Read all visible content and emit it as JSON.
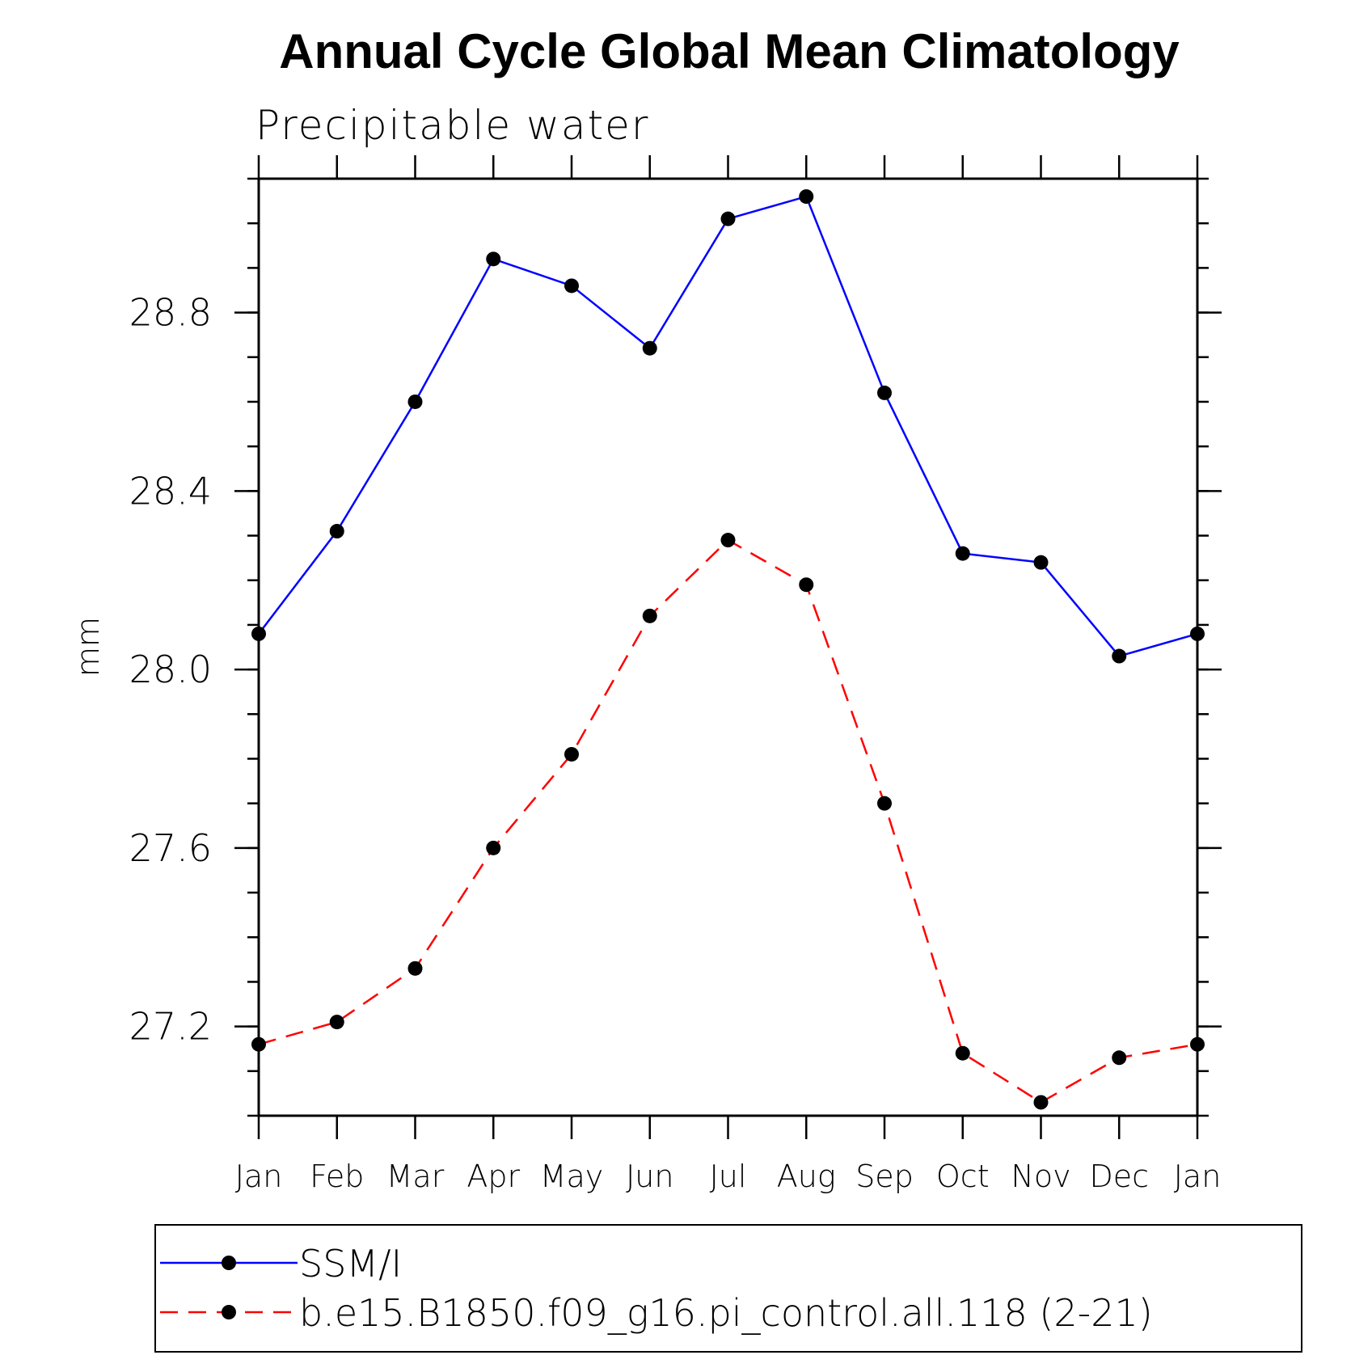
{
  "chart_data": {
    "type": "line",
    "title": "Annual Cycle Global Mean Climatology",
    "subtitle": "Precipitable water",
    "xlabel": "",
    "ylabel": "mm",
    "categories": [
      "Jan",
      "Feb",
      "Mar",
      "Apr",
      "May",
      "Jun",
      "Jul",
      "Aug",
      "Sep",
      "Oct",
      "Nov",
      "Dec",
      "Jan"
    ],
    "ylim": [
      27.0,
      29.1
    ],
    "yticks": [
      27.2,
      27.6,
      28.0,
      28.4,
      28.8
    ],
    "ytick_labels": [
      "27.2",
      "27.6",
      "28.0",
      "28.4",
      "28.8"
    ],
    "y_minor_step": 0.1,
    "grid": false,
    "legend_position": "bottom",
    "series": [
      {
        "name": "SSM/I",
        "color": "#0000ff",
        "line_style": "solid",
        "marker": "filled-circle",
        "values": [
          28.08,
          28.31,
          28.6,
          28.92,
          28.86,
          28.72,
          29.01,
          29.06,
          28.62,
          28.26,
          28.24,
          28.03,
          28.08
        ]
      },
      {
        "name": "b.e15.B1850.f09_g16.pi_control.all.118 (2-21)",
        "color": "#ff0000",
        "line_style": "dashed",
        "marker": "filled-circle",
        "values": [
          27.16,
          27.21,
          27.33,
          27.6,
          27.81,
          28.12,
          28.29,
          28.19,
          27.7,
          27.14,
          27.03,
          27.13,
          27.16
        ]
      }
    ]
  }
}
